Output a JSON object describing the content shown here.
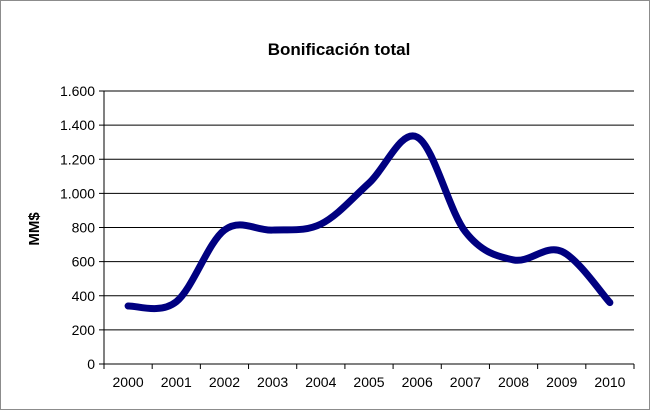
{
  "chart_data": {
    "type": "line",
    "title": "Bonificación total",
    "xlabel": "",
    "ylabel": "MM$",
    "categories": [
      "2000",
      "2001",
      "2002",
      "2003",
      "2004",
      "2005",
      "2006",
      "2007",
      "2008",
      "2009",
      "2010"
    ],
    "series": [
      {
        "name": "",
        "values": [
          340,
          365,
          785,
          785,
          820,
          1060,
          1330,
          775,
          610,
          660,
          360
        ]
      }
    ],
    "ylim": [
      0,
      1600
    ],
    "yticks": [
      0,
      200,
      400,
      600,
      800,
      1000,
      1200,
      1400,
      1600
    ],
    "ytick_labels": [
      "0",
      "200",
      "400",
      "600",
      "800",
      "1.000",
      "1.200",
      "1.400",
      "1.600"
    ],
    "grid": "horizontal",
    "smooth": true,
    "legend": "none",
    "line_color": "#000080"
  }
}
